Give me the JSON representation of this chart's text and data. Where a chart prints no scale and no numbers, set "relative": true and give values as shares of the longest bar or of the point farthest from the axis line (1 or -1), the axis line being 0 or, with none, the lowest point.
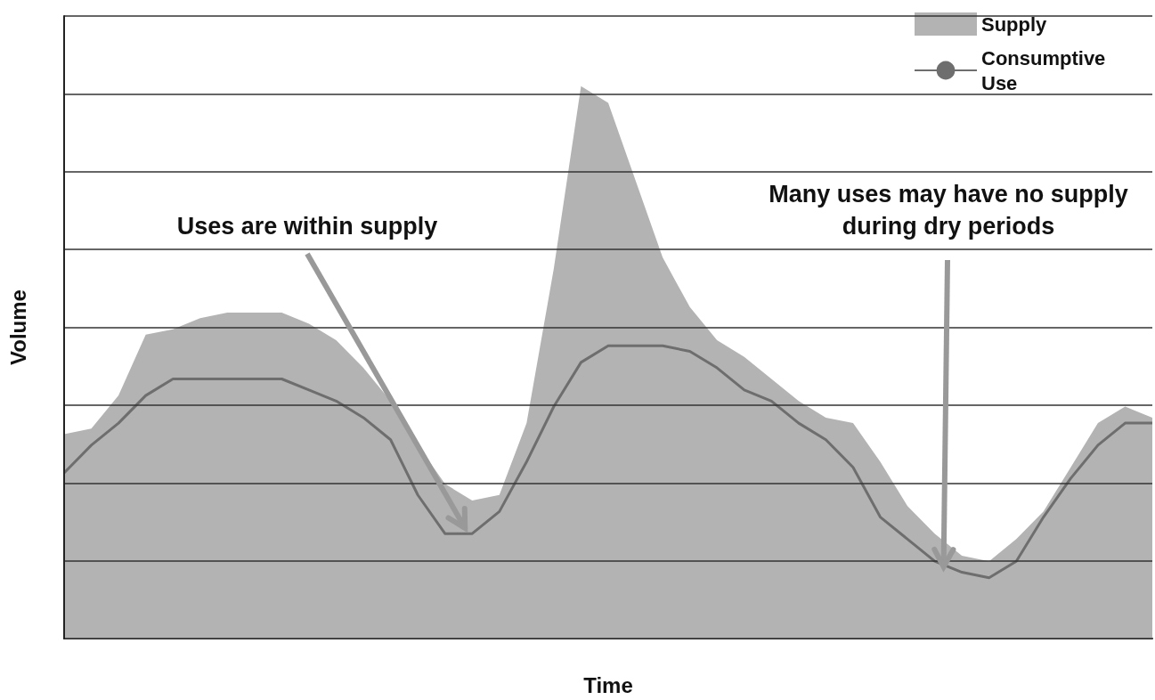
{
  "chart_data": {
    "type": "area",
    "relative": true,
    "xlabel": "Time",
    "ylabel": "Volume",
    "grid": "y",
    "legend": "top right",
    "marker": "none",
    "categories": [
      null,
      null,
      null,
      null,
      null,
      null,
      null,
      null,
      null,
      null,
      null,
      null,
      null,
      null,
      null,
      null,
      null,
      null,
      null,
      null,
      null,
      null,
      null,
      null,
      null,
      null,
      null,
      null,
      null,
      null,
      null,
      null,
      null,
      null,
      null,
      null,
      null,
      null,
      null,
      null,
      null
    ],
    "series": [
      {
        "name": "Supply",
        "type": "area",
        "color": "#b3b3b3",
        "values": [
          0.37,
          0.38,
          0.44,
          0.55,
          0.56,
          0.58,
          0.59,
          0.59,
          0.59,
          0.57,
          0.54,
          0.49,
          0.43,
          0.35,
          0.28,
          0.25,
          0.26,
          0.39,
          0.67,
          1.0,
          0.97,
          0.83,
          0.69,
          0.6,
          0.54,
          0.51,
          0.47,
          0.43,
          0.4,
          0.39,
          0.32,
          0.24,
          0.19,
          0.15,
          0.14,
          0.18,
          0.23,
          0.31,
          0.39,
          0.42,
          0.4
        ]
      },
      {
        "name": "Consumptive Use",
        "type": "line",
        "color": "#6e6e6e",
        "line_style": "solid",
        "values": [
          0.3,
          0.35,
          0.39,
          0.44,
          0.47,
          0.47,
          0.47,
          0.47,
          0.47,
          0.45,
          0.43,
          0.4,
          0.36,
          0.26,
          0.19,
          0.19,
          0.23,
          0.32,
          0.42,
          0.5,
          0.53,
          0.53,
          0.53,
          0.52,
          0.49,
          0.45,
          0.43,
          0.39,
          0.36,
          0.31,
          0.22,
          0.18,
          0.14,
          0.12,
          0.11,
          0.14,
          0.22,
          0.29,
          0.35,
          0.39,
          0.39
        ]
      }
    ],
    "annotations": [
      "Uses are within supply",
      "Many uses may have no supply during dry periods"
    ]
  }
}
